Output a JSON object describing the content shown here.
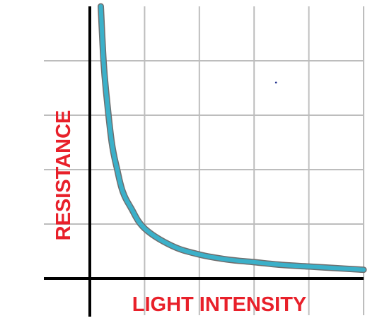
{
  "chart_data": {
    "type": "line",
    "title": "",
    "xlabel": "LIGHT INTENSITY",
    "ylabel": "RESISTANCE",
    "xlim": [
      0,
      5
    ],
    "ylim": [
      0,
      5
    ],
    "grid": true,
    "legend": "none",
    "colors": {
      "curve": "#3bb0c9",
      "curve_outline": "#6e6e6e",
      "labels": "#e8202a",
      "grid": "#bdbdbd",
      "axes": "#000000",
      "marker": "#1a2a8a"
    },
    "series": [
      {
        "x": [
          0.2,
          0.25,
          0.3,
          0.4,
          0.5,
          0.6,
          0.75,
          1.0,
          1.5,
          2.0,
          2.5,
          3.0,
          3.5,
          4.0,
          4.5,
          5.0
        ],
        "y": [
          5.0,
          4.0,
          3.4,
          2.5,
          2.0,
          1.6,
          1.3,
          0.92,
          0.6,
          0.44,
          0.35,
          0.3,
          0.25,
          0.22,
          0.19,
          0.16
        ]
      }
    ],
    "annotations": [
      {
        "type": "point",
        "x": 3.4,
        "y": 3.6
      }
    ]
  }
}
